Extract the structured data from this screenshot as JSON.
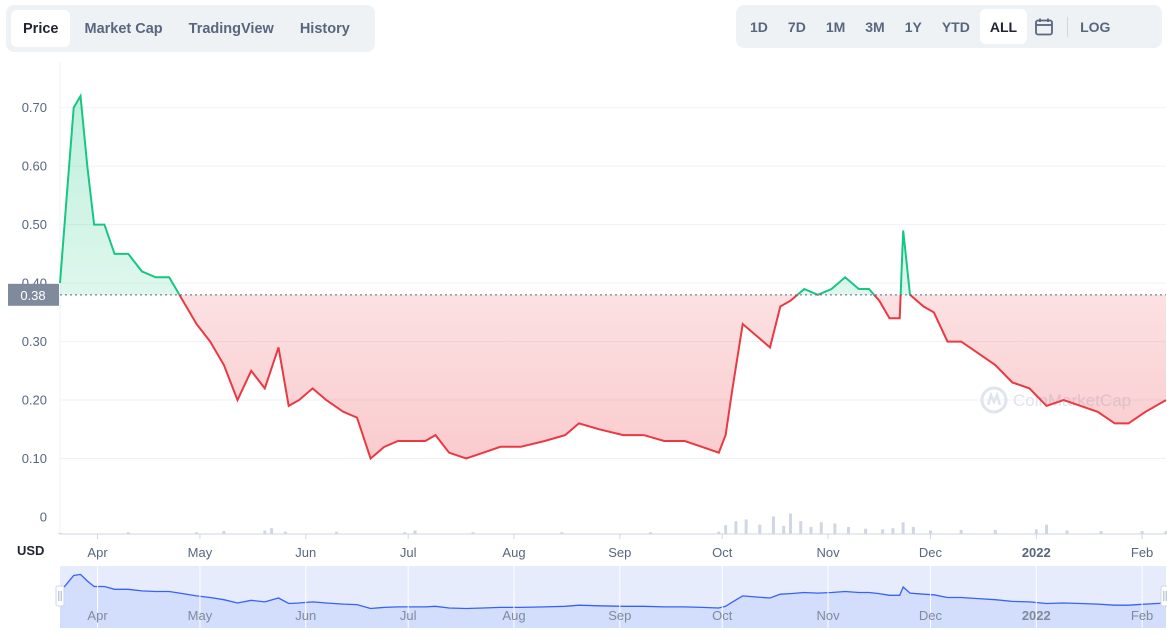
{
  "tabs": [
    {
      "label": "Price",
      "active": true
    },
    {
      "label": "Market Cap",
      "active": false
    },
    {
      "label": "TradingView",
      "active": false
    },
    {
      "label": "History",
      "active": false
    }
  ],
  "ranges": [
    {
      "label": "1D",
      "active": false
    },
    {
      "label": "7D",
      "active": false
    },
    {
      "label": "1M",
      "active": false
    },
    {
      "label": "3M",
      "active": false
    },
    {
      "label": "1Y",
      "active": false
    },
    {
      "label": "YTD",
      "active": false
    },
    {
      "label": "ALL",
      "active": true
    }
  ],
  "log_label": "LOG",
  "icons": {
    "calendar": "calendar-icon",
    "left_handle": "range-handle-left-icon",
    "right_handle": "range-handle-right-icon"
  },
  "watermark": "CoinMarketCap",
  "colors": {
    "up": "#16c784",
    "down": "#ea3943",
    "volume": "#cfd6e4",
    "navigator": "#3861fb",
    "reference": "#58667e"
  },
  "chart_data": {
    "type": "line",
    "unit_label": "USD",
    "reference_price": 0.38,
    "reference_label": "0.38",
    "y_ticks": [
      0,
      0.1,
      0.2,
      0.3,
      0.4,
      0.5,
      0.6,
      0.7
    ],
    "y_tick_labels": [
      "0",
      "0.10",
      "0.20",
      "0.30",
      "0.40",
      "0.50",
      "0.60",
      "0.70"
    ],
    "ylim": [
      0,
      0.75
    ],
    "x_tick_labels": [
      "Apr",
      "May",
      "Jun",
      "Jul",
      "Aug",
      "Sep",
      "Oct",
      "Nov",
      "Dec",
      "2022",
      "Feb"
    ],
    "x_tick_dates": [
      "2021-04-01",
      "2021-05-01",
      "2021-06-01",
      "2021-07-01",
      "2021-08-01",
      "2021-09-01",
      "2021-10-01",
      "2021-11-01",
      "2021-12-01",
      "2022-01-01",
      "2022-02-01"
    ],
    "xlim": [
      "2021-03-21",
      "2022-02-08"
    ],
    "price_series": {
      "x": [
        "2021-03-21",
        "2021-03-23",
        "2021-03-25",
        "2021-03-27",
        "2021-03-29",
        "2021-03-31",
        "2021-04-03",
        "2021-04-06",
        "2021-04-10",
        "2021-04-14",
        "2021-04-18",
        "2021-04-22",
        "2021-04-26",
        "2021-04-30",
        "2021-05-04",
        "2021-05-08",
        "2021-05-12",
        "2021-05-16",
        "2021-05-20",
        "2021-05-24",
        "2021-05-27",
        "2021-05-30",
        "2021-06-03",
        "2021-06-07",
        "2021-06-12",
        "2021-06-16",
        "2021-06-20",
        "2021-06-24",
        "2021-06-28",
        "2021-07-02",
        "2021-07-06",
        "2021-07-09",
        "2021-07-13",
        "2021-07-18",
        "2021-07-23",
        "2021-07-28",
        "2021-08-03",
        "2021-08-10",
        "2021-08-16",
        "2021-08-20",
        "2021-08-26",
        "2021-09-02",
        "2021-09-08",
        "2021-09-14",
        "2021-09-20",
        "2021-09-25",
        "2021-09-30",
        "2021-10-02",
        "2021-10-04",
        "2021-10-07",
        "2021-10-11",
        "2021-10-15",
        "2021-10-18",
        "2021-10-21",
        "2021-10-25",
        "2021-10-29",
        "2021-11-02",
        "2021-11-06",
        "2021-11-10",
        "2021-11-13",
        "2021-11-16",
        "2021-11-19",
        "2021-11-22",
        "2021-11-23",
        "2021-11-25",
        "2021-11-29",
        "2021-12-02",
        "2021-12-06",
        "2021-12-10",
        "2021-12-15",
        "2021-12-20",
        "2021-12-25",
        "2021-12-30",
        "2022-01-04",
        "2022-01-09",
        "2022-01-14",
        "2022-01-19",
        "2022-01-24",
        "2022-01-28",
        "2022-02-02",
        "2022-02-08"
      ],
      "y": [
        0.4,
        0.55,
        0.7,
        0.72,
        0.6,
        0.5,
        0.5,
        0.45,
        0.45,
        0.42,
        0.41,
        0.41,
        0.37,
        0.33,
        0.3,
        0.26,
        0.2,
        0.25,
        0.22,
        0.29,
        0.19,
        0.2,
        0.22,
        0.2,
        0.18,
        0.17,
        0.1,
        0.12,
        0.13,
        0.13,
        0.13,
        0.14,
        0.11,
        0.1,
        0.11,
        0.12,
        0.12,
        0.13,
        0.14,
        0.16,
        0.15,
        0.14,
        0.14,
        0.13,
        0.13,
        0.12,
        0.11,
        0.14,
        0.22,
        0.33,
        0.31,
        0.29,
        0.36,
        0.37,
        0.39,
        0.38,
        0.39,
        0.41,
        0.39,
        0.39,
        0.37,
        0.34,
        0.34,
        0.49,
        0.38,
        0.36,
        0.35,
        0.3,
        0.3,
        0.28,
        0.26,
        0.23,
        0.22,
        0.19,
        0.2,
        0.19,
        0.18,
        0.16,
        0.16,
        0.18,
        0.2
      ]
    },
    "volume_series": {
      "x": [
        "2021-03-21",
        "2021-04-10",
        "2021-04-30",
        "2021-05-08",
        "2021-05-20",
        "2021-05-22",
        "2021-05-26",
        "2021-06-10",
        "2021-06-30",
        "2021-07-03",
        "2021-07-20",
        "2021-08-15",
        "2021-09-10",
        "2021-09-30",
        "2021-10-02",
        "2021-10-05",
        "2021-10-08",
        "2021-10-12",
        "2021-10-16",
        "2021-10-19",
        "2021-10-21",
        "2021-10-24",
        "2021-10-27",
        "2021-10-30",
        "2021-11-03",
        "2021-11-07",
        "2021-11-12",
        "2021-11-17",
        "2021-11-20",
        "2021-11-23",
        "2021-11-26",
        "2021-12-01",
        "2021-12-10",
        "2021-12-20",
        "2022-01-01",
        "2022-01-04",
        "2022-01-10",
        "2022-01-20",
        "2022-02-01",
        "2022-02-08"
      ],
      "y": [
        0.002,
        0.003,
        0.003,
        0.005,
        0.006,
        0.01,
        0.004,
        0.004,
        0.003,
        0.006,
        0.003,
        0.003,
        0.003,
        0.004,
        0.015,
        0.022,
        0.025,
        0.016,
        0.03,
        0.014,
        0.035,
        0.022,
        0.012,
        0.02,
        0.018,
        0.012,
        0.009,
        0.008,
        0.01,
        0.02,
        0.012,
        0.006,
        0.007,
        0.007,
        0.008,
        0.016,
        0.006,
        0.005,
        0.005,
        0.005
      ]
    }
  }
}
